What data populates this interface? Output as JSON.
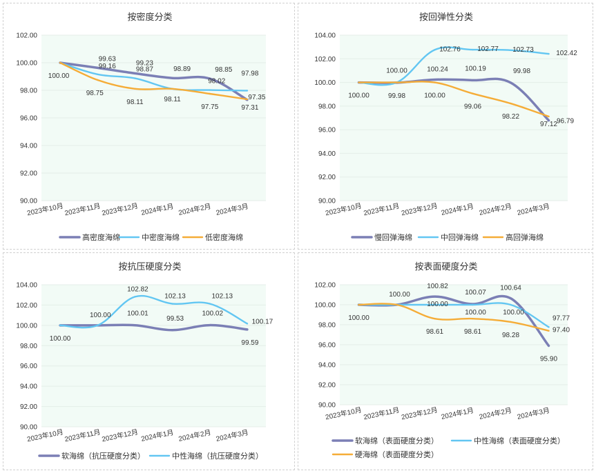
{
  "colors": {
    "plot_bg": "#f2fbf6",
    "grid": "#e4eee8",
    "series": [
      "#7b7fb5",
      "#62c6f2",
      "#f5ac37"
    ]
  },
  "chart_data": [
    {
      "type": "line",
      "title": "按密度分类",
      "categories": [
        "2023年10月",
        "2023年11月",
        "2023年12月",
        "2024年1月",
        "2024年2月",
        "2024年3月"
      ],
      "ylim": [
        90,
        102
      ],
      "yticks": [
        "90.00",
        "92.00",
        "94.00",
        "96.00",
        "98.00",
        "100.00",
        "102.00"
      ],
      "series": [
        {
          "name": "高密度海绵",
          "values": [
            100.0,
            99.63,
            99.23,
            98.89,
            98.85,
            97.31
          ],
          "labels": [
            "100.00",
            "99.63",
            "99.23",
            "98.89",
            "98.85",
            "97.31"
          ]
        },
        {
          "name": "中密度海绵",
          "values": [
            100.0,
            99.16,
            98.87,
            98.11,
            98.02,
            97.98
          ],
          "labels": [
            "",
            "99.16",
            "98.87",
            "98.11",
            "98.02",
            "97.98"
          ]
        },
        {
          "name": "低密度海绵",
          "values": [
            100.0,
            98.75,
            98.11,
            98.11,
            97.75,
            97.35
          ],
          "labels": [
            "",
            "98.75",
            "98.11",
            "",
            "97.75",
            "97.35"
          ]
        }
      ]
    },
    {
      "type": "line",
      "title": "按回弹性分类",
      "categories": [
        "2023年10月",
        "2023年11月",
        "2023年12月",
        "2024年1月",
        "2024年2月",
        "2024年3月"
      ],
      "ylim": [
        90,
        104
      ],
      "yticks": [
        "90.00",
        "92.00",
        "94.00",
        "96.00",
        "98.00",
        "100.00",
        "102.00",
        "104.00"
      ],
      "series": [
        {
          "name": "慢回弹海绵",
          "values": [
            100.0,
            99.98,
            100.24,
            100.19,
            99.98,
            96.79
          ],
          "labels": [
            "100.00",
            "99.98",
            "100.24",
            "100.19",
            "99.98",
            "96.79"
          ]
        },
        {
          "name": "中回弹海绵",
          "values": [
            100.0,
            100.0,
            102.76,
            102.77,
            102.73,
            102.42
          ],
          "labels": [
            "",
            "100.00",
            "102.76",
            "102.77",
            "102.73",
            "102.42"
          ]
        },
        {
          "name": "高回弹海绵",
          "values": [
            100.0,
            100.0,
            100.0,
            99.06,
            98.22,
            97.12
          ],
          "labels": [
            "",
            "",
            "100.00",
            "99.06",
            "98.22",
            "97.12"
          ]
        }
      ]
    },
    {
      "type": "line",
      "title": "按抗压硬度分类",
      "categories": [
        "2023年10月",
        "2023年11月",
        "2023年12月",
        "2024年1月",
        "2024年2月",
        "2024年3月"
      ],
      "ylim": [
        90,
        104
      ],
      "yticks": [
        "90.00",
        "92.00",
        "94.00",
        "96.00",
        "98.00",
        "100.00",
        "102.00",
        "104.00"
      ],
      "series": [
        {
          "name": "软海绵（抗压硬度分类）",
          "values": [
            100.0,
            100.0,
            100.01,
            99.53,
            100.02,
            99.59
          ],
          "labels": [
            "100.00",
            "",
            "100.01",
            "99.53",
            "100.02",
            "99.59"
          ]
        },
        {
          "name": "中性海绵（抗压硬度分类）",
          "values": [
            100.0,
            100.0,
            102.82,
            102.13,
            102.13,
            100.17
          ],
          "labels": [
            "",
            "100.00",
            "102.82",
            "102.13",
            "102.13",
            "100.17"
          ]
        }
      ]
    },
    {
      "type": "line",
      "title": "按表面硬度分类",
      "categories": [
        "2023年10月",
        "2023年11月",
        "2023年12月",
        "2024年1月",
        "2024年2月",
        "2024年3月"
      ],
      "ylim": [
        90,
        102
      ],
      "yticks": [
        "90.00",
        "92.00",
        "94.00",
        "96.00",
        "98.00",
        "100.00",
        "102.00"
      ],
      "series": [
        {
          "name": "软海绵（表面硬度分类）",
          "values": [
            100.0,
            100.0,
            100.82,
            100.07,
            100.64,
            95.9
          ],
          "labels": [
            "100.00",
            "100.00",
            "100.82",
            "100.07",
            "100.64",
            "95.90"
          ]
        },
        {
          "name": "中性海绵（表面硬度分类）",
          "values": [
            100.0,
            100.0,
            100.0,
            100.0,
            100.0,
            97.77
          ],
          "labels": [
            "",
            "",
            "100.00",
            "100.00",
            "100.00",
            "97.77"
          ]
        },
        {
          "name": "硬海绵（表面硬度分类）",
          "values": [
            100.0,
            100.0,
            98.61,
            98.61,
            98.28,
            97.4
          ],
          "labels": [
            "",
            "",
            "98.61",
            "98.61",
            "98.28",
            "97.40"
          ]
        }
      ]
    }
  ]
}
